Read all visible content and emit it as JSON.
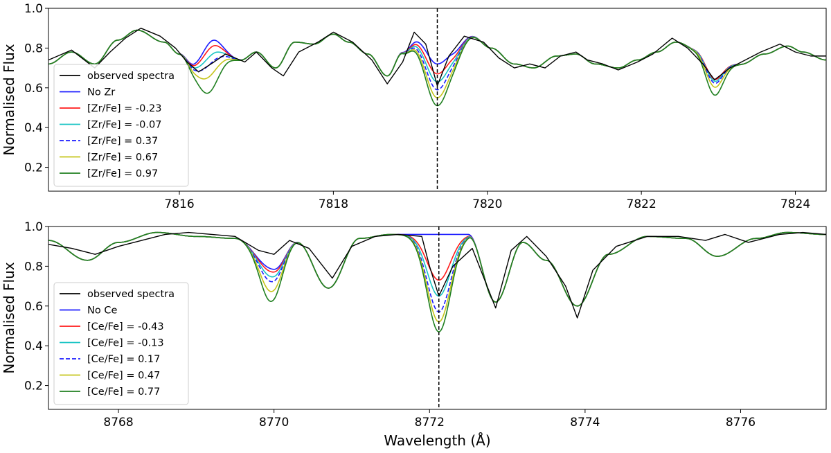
{
  "chart_data": [
    {
      "type": "line",
      "title": "",
      "xlabel": "",
      "ylabel": "Normalised Flux",
      "xlim": [
        7814.3,
        7824.4
      ],
      "ylim": [
        0.08,
        1.0
      ],
      "xticks": [
        7816,
        7818,
        7820,
        7822,
        7824
      ],
      "xtick_labels": [
        "7816",
        "7818",
        "7820",
        "7822",
        "7824"
      ],
      "yticks": [
        0.2,
        0.4,
        0.6,
        0.8,
        1.0
      ],
      "ytick_labels": [
        "0.2",
        "0.4",
        "0.6",
        "0.8",
        "1.0"
      ],
      "vline": 7819.35,
      "legend_position": "lower-left",
      "legend": [
        "observed spectra",
        "No Zr",
        "[Zr/Fe] = -0.23",
        "[Zr/Fe] = -0.07",
        "[Zr/Fe] = 0.37",
        "[Zr/Fe] = 0.67",
        "[Zr/Fe] = 0.97"
      ],
      "continuum": {
        "x": [
          7814.3,
          7814.6,
          7814.9,
          7815.2,
          7815.45,
          7815.8,
          7816.0,
          7816.2,
          7816.5,
          7816.8,
          7817.0,
          7817.25,
          7817.5,
          7817.75,
          7818.0,
          7818.2,
          7818.45,
          7818.7,
          7818.9,
          7819.1,
          7819.35,
          7819.55,
          7819.8,
          7820.05,
          7820.35,
          7820.6,
          7820.9,
          7821.15,
          7821.4,
          7821.7,
          7821.95,
          7822.2,
          7822.45,
          7822.7,
          7823.0,
          7823.3,
          7823.6,
          7823.9,
          7824.1,
          7824.4
        ],
        "y": [
          0.72,
          0.78,
          0.72,
          0.84,
          0.89,
          0.83,
          0.77,
          0.7,
          0.78,
          0.74,
          0.78,
          0.7,
          0.83,
          0.82,
          0.87,
          0.83,
          0.77,
          0.66,
          0.78,
          0.85,
          0.78,
          0.8,
          0.86,
          0.8,
          0.72,
          0.7,
          0.76,
          0.77,
          0.72,
          0.7,
          0.74,
          0.78,
          0.83,
          0.8,
          0.75,
          0.72,
          0.77,
          0.81,
          0.78,
          0.74
        ]
      },
      "lines": [
        {
          "center": 7816.4,
          "width": 0.13,
          "depth": {
            "No Zr": -0.07,
            "[Zr/Fe] = -0.23": -0.04,
            "[Zr/Fe] = -0.07": 0.0,
            "[Zr/Fe] = 0.37": 0.04,
            "[Zr/Fe] = 0.67": 0.1,
            "[Zr/Fe] = 0.97": 0.18
          }
        },
        {
          "center": 7819.35,
          "width": 0.17,
          "depth": {
            "No Zr": 0.06,
            "[Zr/Fe] = -0.23": 0.11,
            "[Zr/Fe] = -0.07": 0.15,
            "[Zr/Fe] = 0.37": 0.19,
            "[Zr/Fe] = 0.67": 0.23,
            "[Zr/Fe] = 0.97": 0.27
          }
        },
        {
          "center": 7822.95,
          "width": 0.12,
          "depth": {
            "No Zr": 0.11,
            "[Zr/Fe] = -0.23": 0.11,
            "[Zr/Fe] = -0.07": 0.12,
            "[Zr/Fe] = 0.37": 0.13,
            "[Zr/Fe] = 0.67": 0.15,
            "[Zr/Fe] = 0.97": 0.19
          }
        }
      ],
      "series": [
        {
          "name": "observed spectra",
          "color": "#000000",
          "dash": "solid",
          "points": [
            [
              7814.3,
              0.74
            ],
            [
              7814.6,
              0.79
            ],
            [
              7814.9,
              0.7
            ],
            [
              7815.1,
              0.78
            ],
            [
              7815.3,
              0.85
            ],
            [
              7815.5,
              0.9
            ],
            [
              7815.75,
              0.86
            ],
            [
              7815.95,
              0.8
            ],
            [
              7816.1,
              0.73
            ],
            [
              7816.25,
              0.68
            ],
            [
              7816.45,
              0.73
            ],
            [
              7816.6,
              0.77
            ],
            [
              7816.85,
              0.73
            ],
            [
              7817.0,
              0.78
            ],
            [
              7817.2,
              0.7
            ],
            [
              7817.35,
              0.66
            ],
            [
              7817.55,
              0.78
            ],
            [
              7817.8,
              0.83
            ],
            [
              7818.0,
              0.88
            ],
            [
              7818.25,
              0.83
            ],
            [
              7818.5,
              0.74
            ],
            [
              7818.7,
              0.62
            ],
            [
              7818.9,
              0.73
            ],
            [
              7819.05,
              0.88
            ],
            [
              7819.2,
              0.82
            ],
            [
              7819.35,
              0.61
            ],
            [
              7819.5,
              0.76
            ],
            [
              7819.7,
              0.86
            ],
            [
              7819.95,
              0.83
            ],
            [
              7820.15,
              0.75
            ],
            [
              7820.35,
              0.7
            ],
            [
              7820.55,
              0.72
            ],
            [
              7820.75,
              0.7
            ],
            [
              7820.95,
              0.76
            ],
            [
              7821.15,
              0.78
            ],
            [
              7821.3,
              0.74
            ],
            [
              7821.5,
              0.72
            ],
            [
              7821.7,
              0.69
            ],
            [
              7821.95,
              0.73
            ],
            [
              7822.15,
              0.77
            ],
            [
              7822.4,
              0.85
            ],
            [
              7822.6,
              0.8
            ],
            [
              7822.8,
              0.72
            ],
            [
              7822.95,
              0.64
            ],
            [
              7823.15,
              0.7
            ],
            [
              7823.35,
              0.74
            ],
            [
              7823.55,
              0.78
            ],
            [
              7823.8,
              0.82
            ],
            [
              7824.0,
              0.78
            ],
            [
              7824.2,
              0.76
            ],
            [
              7824.4,
              0.76
            ]
          ]
        },
        {
          "name": "No Zr",
          "color": "#1a1aff",
          "dash": "solid"
        },
        {
          "name": "[Zr/Fe] = -0.23",
          "color": "#ff1a1a",
          "dash": "solid"
        },
        {
          "name": "[Zr/Fe] = -0.07",
          "color": "#19c4c4",
          "dash": "solid"
        },
        {
          "name": "[Zr/Fe] = 0.37",
          "color": "#1a1aff",
          "dash": "dashed"
        },
        {
          "name": "[Zr/Fe] = 0.67",
          "color": "#c4c41a",
          "dash": "solid"
        },
        {
          "name": "[Zr/Fe] = 0.97",
          "color": "#1f7f1f",
          "dash": "solid"
        }
      ]
    },
    {
      "type": "line",
      "title": "",
      "xlabel": "Wavelength (Å)",
      "ylabel": "Normalised Flux",
      "xlim": [
        8767.1,
        8777.1
      ],
      "ylim": [
        0.08,
        1.0
      ],
      "xticks": [
        8768,
        8770,
        8772,
        8774,
        8776
      ],
      "xtick_labels": [
        "8768",
        "8770",
        "8772",
        "8774",
        "8776"
      ],
      "yticks": [
        0.2,
        0.4,
        0.6,
        0.8,
        1.0
      ],
      "ytick_labels": [
        "0.2",
        "0.4",
        "0.6",
        "0.8",
        "1.0"
      ],
      "vline": 8772.12,
      "legend_position": "lower-left",
      "legend": [
        "observed spectra",
        "No Ce",
        "[Ce/Fe] = -0.43",
        "[Ce/Fe] = -0.13",
        "[Ce/Fe] = 0.17",
        "[Ce/Fe] = 0.47",
        "[Ce/Fe] = 0.77"
      ],
      "continuum": {
        "x": [
          8767.1,
          8767.6,
          8768.0,
          8768.5,
          8769.0,
          8769.5,
          8770.0,
          8770.3,
          8770.7,
          8771.1,
          8771.5,
          8771.9,
          8772.12,
          8772.5,
          8772.85,
          8773.2,
          8773.5,
          8773.9,
          8774.3,
          8774.8,
          8775.3,
          8775.7,
          8776.2,
          8776.6,
          8777.1
        ],
        "y": [
          0.93,
          0.83,
          0.92,
          0.97,
          0.95,
          0.94,
          0.78,
          0.92,
          0.69,
          0.94,
          0.96,
          0.96,
          0.96,
          0.96,
          0.62,
          0.92,
          0.83,
          0.6,
          0.86,
          0.95,
          0.94,
          0.85,
          0.94,
          0.97,
          0.96
        ]
      },
      "lines": [
        {
          "center": 8769.95,
          "width": 0.12,
          "depth": {
            "No Ce": -0.005,
            "[Ce/Fe] = -0.43": 0.01,
            "[Ce/Fe] = -0.13": 0.035,
            "[Ce/Fe] = 0.17": 0.06,
            "[Ce/Fe] = 0.47": 0.11,
            "[Ce/Fe] = 0.77": 0.16
          }
        },
        {
          "center": 8772.12,
          "width": 0.15,
          "depth": {
            "No Ce": 0.0,
            "[Ce/Fe] = -0.43": 0.23,
            "[Ce/Fe] = -0.13": 0.31,
            "[Ce/Fe] = 0.17": 0.39,
            "[Ce/Fe] = 0.47": 0.44,
            "[Ce/Fe] = 0.77": 0.49
          }
        }
      ],
      "series": [
        {
          "name": "observed spectra",
          "color": "#000000",
          "dash": "solid",
          "points": [
            [
              8767.1,
              0.91
            ],
            [
              8767.4,
              0.89
            ],
            [
              8767.7,
              0.86
            ],
            [
              8768.0,
              0.9
            ],
            [
              8768.3,
              0.93
            ],
            [
              8768.6,
              0.96
            ],
            [
              8768.9,
              0.97
            ],
            [
              8769.2,
              0.96
            ],
            [
              8769.5,
              0.95
            ],
            [
              8769.8,
              0.88
            ],
            [
              8770.0,
              0.86
            ],
            [
              8770.2,
              0.93
            ],
            [
              8770.45,
              0.89
            ],
            [
              8770.75,
              0.74
            ],
            [
              8771.0,
              0.9
            ],
            [
              8771.3,
              0.95
            ],
            [
              8771.6,
              0.96
            ],
            [
              8771.9,
              0.95
            ],
            [
              8772.0,
              0.8
            ],
            [
              8772.12,
              0.65
            ],
            [
              8772.3,
              0.8
            ],
            [
              8772.55,
              0.89
            ],
            [
              8772.85,
              0.59
            ],
            [
              8773.05,
              0.88
            ],
            [
              8773.25,
              0.95
            ],
            [
              8773.5,
              0.85
            ],
            [
              8773.75,
              0.7
            ],
            [
              8773.9,
              0.54
            ],
            [
              8774.1,
              0.78
            ],
            [
              8774.4,
              0.9
            ],
            [
              8774.8,
              0.95
            ],
            [
              8775.2,
              0.95
            ],
            [
              8775.55,
              0.93
            ],
            [
              8775.8,
              0.96
            ],
            [
              8776.1,
              0.92
            ],
            [
              8776.5,
              0.96
            ],
            [
              8776.8,
              0.97
            ],
            [
              8777.1,
              0.96
            ]
          ]
        },
        {
          "name": "No Ce",
          "color": "#1a1aff",
          "dash": "solid"
        },
        {
          "name": "[Ce/Fe] = -0.43",
          "color": "#ff1a1a",
          "dash": "solid"
        },
        {
          "name": "[Ce/Fe] = -0.13",
          "color": "#19c4c4",
          "dash": "solid"
        },
        {
          "name": "[Ce/Fe] = 0.17",
          "color": "#1a1aff",
          "dash": "dashed"
        },
        {
          "name": "[Ce/Fe] = 0.47",
          "color": "#c4c41a",
          "dash": "solid"
        },
        {
          "name": "[Ce/Fe] = 0.77",
          "color": "#1f7f1f",
          "dash": "solid"
        }
      ]
    }
  ]
}
